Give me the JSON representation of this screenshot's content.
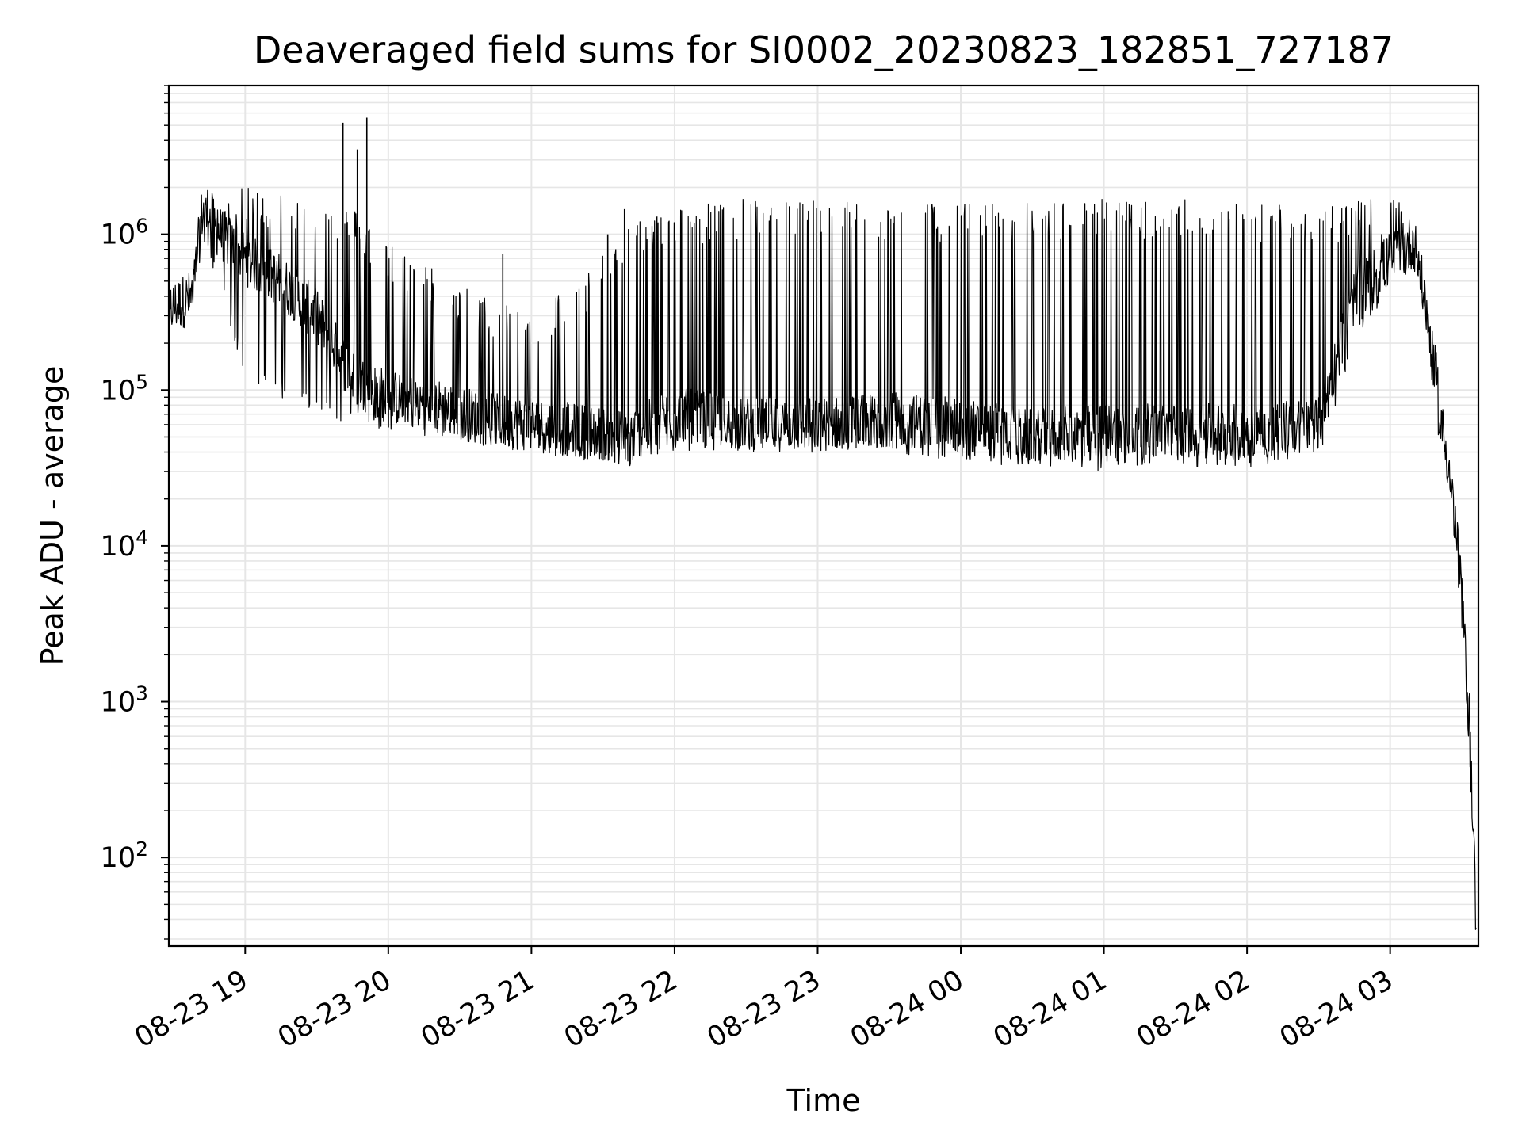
{
  "chart_data": {
    "type": "line",
    "title": "Deaveraged field sums for SI0002_20230823_182851_727187",
    "xlabel": "Time",
    "ylabel": "Peak ADU - average",
    "yscale": "log",
    "ylim": [
      27,
      9000000
    ],
    "xlim": [
      "2023-08-23 18:28",
      "2023-08-24 03:37"
    ],
    "grid": true,
    "line_color": "#000000",
    "grid_color": "#e6e6e6",
    "x_ticks": [
      {
        "time": "2023-08-23 19:00",
        "label": "08-23 19"
      },
      {
        "time": "2023-08-23 20:00",
        "label": "08-23 20"
      },
      {
        "time": "2023-08-23 21:00",
        "label": "08-23 21"
      },
      {
        "time": "2023-08-23 22:00",
        "label": "08-23 22"
      },
      {
        "time": "2023-08-23 23:00",
        "label": "08-23 23"
      },
      {
        "time": "2023-08-24 00:00",
        "label": "08-24 00"
      },
      {
        "time": "2023-08-24 01:00",
        "label": "08-24 01"
      },
      {
        "time": "2023-08-24 02:00",
        "label": "08-24 02"
      },
      {
        "time": "2023-08-24 03:00",
        "label": "08-24 03"
      }
    ],
    "y_ticks": [
      {
        "value": 100,
        "base": "10",
        "exp": "2"
      },
      {
        "value": 1000,
        "base": "10",
        "exp": "3"
      },
      {
        "value": 10000,
        "base": "10",
        "exp": "4"
      },
      {
        "value": 100000,
        "base": "10",
        "exp": "5"
      },
      {
        "value": 1000000,
        "base": "10",
        "exp": "6"
      }
    ],
    "series": [
      {
        "envelope": [
          {
            "time": "2023-08-23 18:28",
            "low": 260000,
            "high": 450000,
            "base": 330000
          },
          {
            "time": "2023-08-23 18:38",
            "low": 300000,
            "high": 550000,
            "base": 400000
          },
          {
            "time": "2023-08-23 18:42",
            "low": 900000,
            "high": 2100000,
            "base": 1400000
          },
          {
            "time": "2023-08-23 18:50",
            "low": 400000,
            "high": 1800000,
            "base": 1000000
          },
          {
            "time": "2023-08-23 19:00",
            "low": 120000,
            "high": 2000000,
            "base": 700000
          },
          {
            "time": "2023-08-23 19:15",
            "low": 90000,
            "high": 1900000,
            "base": 500000
          },
          {
            "time": "2023-08-23 19:30",
            "low": 70000,
            "high": 1600000,
            "base": 300000
          },
          {
            "time": "2023-08-23 19:45",
            "low": 60000,
            "high": 1500000,
            "base": 120000
          },
          {
            "time": "2023-08-23 20:00",
            "low": 55000,
            "high": 900000,
            "base": 90000
          },
          {
            "time": "2023-08-23 20:20",
            "low": 50000,
            "high": 600000,
            "base": 80000
          },
          {
            "time": "2023-08-23 20:40",
            "low": 45000,
            "high": 400000,
            "base": 65000
          },
          {
            "time": "2023-08-23 21:00",
            "low": 40000,
            "high": 350000,
            "base": 60000
          },
          {
            "time": "2023-08-23 21:20",
            "low": 35000,
            "high": 500000,
            "base": 55000
          },
          {
            "time": "2023-08-23 21:40",
            "low": 30000,
            "high": 1200000,
            "base": 50000
          },
          {
            "time": "2023-08-23 22:00",
            "low": 40000,
            "high": 1500000,
            "base": 70000
          },
          {
            "time": "2023-08-23 22:30",
            "low": 40000,
            "high": 1700000,
            "base": 60000
          },
          {
            "time": "2023-08-23 23:00",
            "low": 35000,
            "high": 1700000,
            "base": 60000
          },
          {
            "time": "2023-08-23 23:30",
            "low": 38000,
            "high": 1600000,
            "base": 65000
          },
          {
            "time": "2023-08-24 00:00",
            "low": 35000,
            "high": 1600000,
            "base": 60000
          },
          {
            "time": "2023-08-24 00:30",
            "low": 30000,
            "high": 1600000,
            "base": 50000
          },
          {
            "time": "2023-08-24 01:00",
            "low": 30000,
            "high": 1700000,
            "base": 55000
          },
          {
            "time": "2023-08-24 01:30",
            "low": 32000,
            "high": 1700000,
            "base": 55000
          },
          {
            "time": "2023-08-24 02:00",
            "low": 32000,
            "high": 1600000,
            "base": 55000
          },
          {
            "time": "2023-08-24 02:30",
            "low": 35000,
            "high": 1600000,
            "base": 60000
          },
          {
            "time": "2023-08-24 02:45",
            "low": 200000,
            "high": 1600000,
            "base": 400000
          },
          {
            "time": "2023-08-24 03:00",
            "low": 400000,
            "high": 1800000,
            "base": 700000
          },
          {
            "time": "2023-08-24 03:10",
            "low": 600000,
            "high": 1300000,
            "base": 900000
          },
          {
            "time": "2023-08-24 03:15",
            "low": 250000,
            "high": 500000,
            "base": 350000
          },
          {
            "time": "2023-08-24 03:20",
            "low": 60000,
            "high": 150000,
            "base": 80000
          },
          {
            "time": "2023-08-24 03:25",
            "low": 20000,
            "high": 40000,
            "base": 30000
          },
          {
            "time": "2023-08-24 03:30",
            "low": 3000,
            "high": 8000,
            "base": 5000
          },
          {
            "time": "2023-08-24 03:33",
            "low": 500,
            "high": 1500,
            "base": 800
          },
          {
            "time": "2023-08-24 03:35",
            "low": 100,
            "high": 200,
            "base": 150
          },
          {
            "time": "2023-08-24 03:36",
            "low": 27,
            "high": 60,
            "base": 30
          }
        ],
        "spikes": [
          {
            "time": "2023-08-23 19:41",
            "value": 5200000
          },
          {
            "time": "2023-08-23 19:51",
            "value": 5600000
          },
          {
            "time": "2023-08-23 19:47",
            "value": 3500000
          },
          {
            "time": "2023-08-23 21:39",
            "value": 1450000
          },
          {
            "time": "2023-08-23 21:32",
            "value": 1000000
          },
          {
            "time": "2023-08-23 20:48",
            "value": 750000
          }
        ]
      }
    ]
  }
}
